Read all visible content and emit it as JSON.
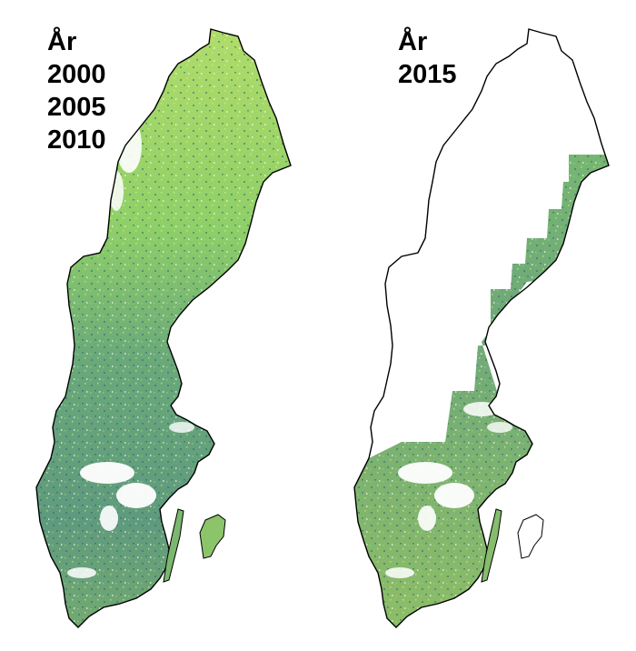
{
  "left_panel": {
    "heading": "År",
    "years": [
      "2000",
      "2005",
      "2010"
    ]
  },
  "right_panel": {
    "heading": "År",
    "years": [
      "2015"
    ]
  },
  "colors": {
    "outline": "#000000",
    "forest_light": "#a9d86a",
    "forest_mid": "#6fb46c",
    "forest_dark": "#3f7f78",
    "bare": "#ffffff"
  }
}
